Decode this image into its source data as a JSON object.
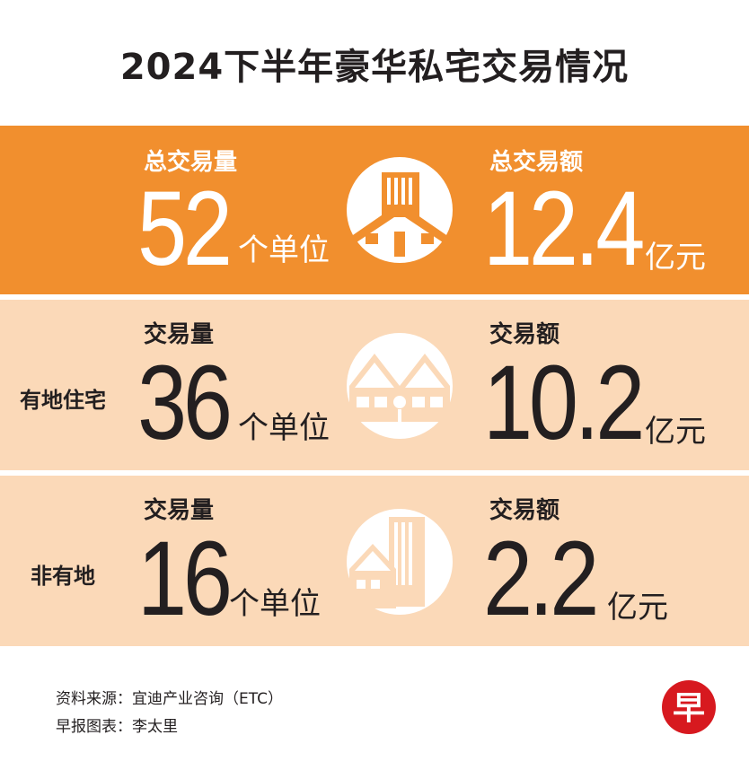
{
  "title": "2024下半年豪华私宅交易情况",
  "total": {
    "volume_label": "总交易量",
    "volume_value": "52",
    "volume_unit": "个单位",
    "amount_label": "总交易额",
    "amount_value": "12.4",
    "amount_unit": "亿元",
    "icon": "city-house-icon"
  },
  "landed": {
    "label": "有地住宅",
    "volume_label": "交易量",
    "volume_value": "36",
    "volume_unit": "个单位",
    "amount_label": "交易额",
    "amount_value": "10.2",
    "amount_unit": "亿元",
    "icon": "landed-house-icon"
  },
  "nonlanded": {
    "label": "非有地",
    "volume_label": "交易量",
    "volume_value": "16",
    "volume_unit": "个单位",
    "amount_label": "交易额",
    "amount_value": "2.2",
    "amount_unit": "亿元",
    "icon": "condo-building-icon"
  },
  "footer": {
    "source": "资料来源：宜迪产业咨询（ETC）",
    "credit": "早报图表：李太里",
    "logo_glyph": "早"
  },
  "colors": {
    "orange": "#f18f2e",
    "peach": "#fbd9b8",
    "logo_red": "#d7191f",
    "text_dark": "#231f20"
  }
}
